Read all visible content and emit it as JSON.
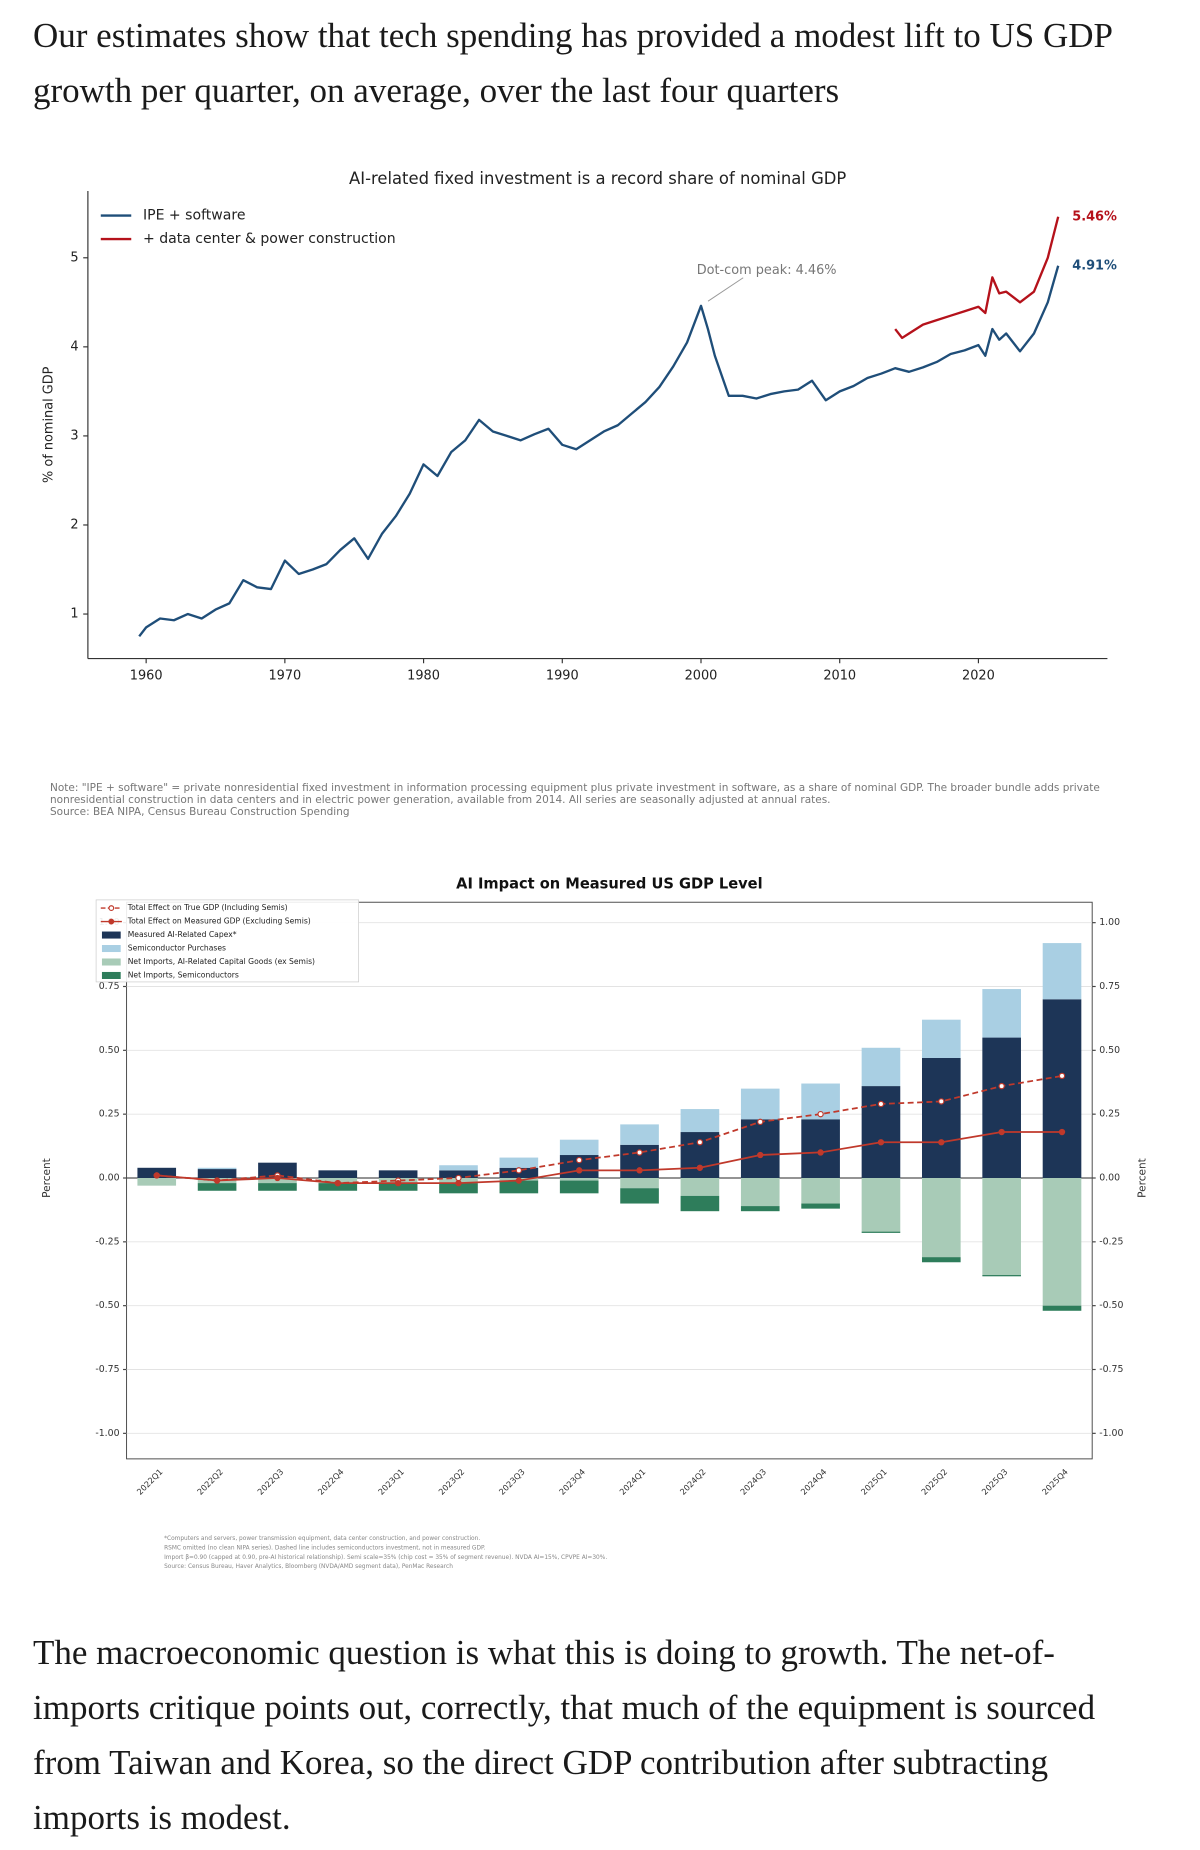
{
  "header": {
    "text": "Our estimates show that tech spending has provided a modest lift to US GDP growth per quarter, on average, over the last four quarters"
  },
  "chart_data": [
    {
      "type": "line",
      "title": "AI-related fixed investment is a record share of nominal GDP",
      "ylabel": "% of nominal GDP",
      "xlim": [
        1955.8,
        2029.3
      ],
      "ylim": [
        0.5,
        5.75
      ],
      "xticks": [
        1960,
        1970,
        1980,
        1990,
        2000,
        2010,
        2020
      ],
      "yticks": [
        1,
        2,
        3,
        4,
        5
      ],
      "grid": false,
      "legend": "upper left",
      "series": [
        {
          "name": "IPE + software",
          "color": "#1f4e79",
          "end_label": "4.91%",
          "x": [
            1959.5,
            1960,
            1961,
            1962,
            1963,
            1964,
            1965,
            1966,
            1967,
            1968,
            1969,
            1970,
            1971,
            1972,
            1973,
            1974,
            1975,
            1976,
            1977,
            1978,
            1979,
            1980,
            1981,
            1982,
            1983,
            1984,
            1985,
            1986,
            1987,
            1988,
            1989,
            1990,
            1991,
            1992,
            1993,
            1994,
            1995,
            1996,
            1997,
            1998,
            1999,
            2000,
            2000.5,
            2001,
            2002,
            2003,
            2004,
            2005,
            2006,
            2007,
            2008,
            2009,
            2010,
            2011,
            2012,
            2013,
            2014,
            2015,
            2016,
            2017,
            2018,
            2019,
            2020,
            2020.5,
            2021,
            2021.5,
            2022,
            2023,
            2024,
            2025,
            2025.75
          ],
          "values": [
            0.75,
            0.85,
            0.95,
            0.93,
            1.0,
            0.95,
            1.05,
            1.12,
            1.38,
            1.3,
            1.28,
            1.6,
            1.45,
            1.5,
            1.56,
            1.72,
            1.85,
            1.62,
            1.9,
            2.1,
            2.35,
            2.68,
            2.55,
            2.82,
            2.95,
            3.18,
            3.05,
            3.0,
            2.95,
            3.02,
            3.08,
            2.9,
            2.85,
            2.95,
            3.05,
            3.12,
            3.25,
            3.38,
            3.55,
            3.78,
            4.05,
            4.46,
            4.2,
            3.9,
            3.45,
            3.45,
            3.42,
            3.47,
            3.5,
            3.52,
            3.62,
            3.4,
            3.5,
            3.56,
            3.65,
            3.7,
            3.76,
            3.72,
            3.77,
            3.83,
            3.92,
            3.96,
            4.02,
            3.9,
            4.2,
            4.08,
            4.15,
            3.95,
            4.15,
            4.5,
            4.91
          ]
        },
        {
          "name": "+ data center & power construction",
          "color": "#b5121b",
          "end_label": "5.46%",
          "x": [
            2014,
            2014.5,
            2015,
            2016,
            2017,
            2018,
            2019,
            2020,
            2020.5,
            2021,
            2021.5,
            2022,
            2023,
            2024,
            2025,
            2025.75
          ],
          "values": [
            4.2,
            4.1,
            4.15,
            4.25,
            4.3,
            4.35,
            4.4,
            4.45,
            4.38,
            4.78,
            4.6,
            4.62,
            4.5,
            4.62,
            5.0,
            5.46
          ]
        }
      ],
      "annotation": {
        "text": "Dot-com peak: 4.46%",
        "x": 2000,
        "y": 4.46
      },
      "note": "Note: \"IPE + software\" = private nonresidential fixed investment in information processing equipment plus private investment in software, as a share of nominal GDP. The broader bundle adds private nonresidential construction in data centers and in electric power generation, available from 2014. All series are seasonally adjusted at annual rates.",
      "source": "Source: BEA NIPA, Census Bureau Construction Spending"
    },
    {
      "type": "bar",
      "stacked": true,
      "title": "AI Impact on Measured US GDP Level",
      "ylabel": "Percent",
      "categories": [
        "2022Q1",
        "2022Q2",
        "2022Q3",
        "2022Q4",
        "2023Q1",
        "2023Q2",
        "2023Q3",
        "2023Q4",
        "2024Q1",
        "2024Q2",
        "2024Q3",
        "2024Q4",
        "2025Q1",
        "2025Q2",
        "2025Q3",
        "2025Q4"
      ],
      "ylim": [
        -1.1,
        1.08
      ],
      "yticks": [
        {
          "value": -1,
          "label": "-1.00"
        },
        {
          "value": -0.75,
          "label": "-0.75"
        },
        {
          "value": -0.5,
          "label": "-0.50"
        },
        {
          "value": -0.25,
          "label": "-0.25"
        },
        {
          "value": 0,
          "label": "0.00"
        },
        {
          "value": 0.25,
          "label": "0.25"
        },
        {
          "value": 0.5,
          "label": "0.50"
        },
        {
          "value": 0.75,
          "label": "0.75"
        },
        {
          "value": 1,
          "label": "1.00"
        }
      ],
      "grid": true,
      "legend": "upper left",
      "series": [
        {
          "name": "Total Effect on True GDP (Including Semis)",
          "type": "line",
          "style": "dashed",
          "marker": "hollow",
          "color": "#c0392b",
          "values": [
            0.01,
            -0.01,
            0.01,
            -0.02,
            -0.01,
            0.0,
            0.03,
            0.07,
            0.1,
            0.14,
            0.22,
            0.25,
            0.29,
            0.3,
            0.36,
            0.4
          ]
        },
        {
          "name": "Total Effect on Measured GDP (Excluding Semis)",
          "type": "line",
          "style": "solid",
          "marker": "filled",
          "color": "#c0392b",
          "values": [
            0.01,
            -0.01,
            0.0,
            -0.02,
            -0.02,
            -0.02,
            -0.01,
            0.03,
            0.03,
            0.04,
            0.09,
            0.1,
            0.14,
            0.14,
            0.18,
            0.18
          ]
        },
        {
          "name": "Measured AI-Related Capex*",
          "type": "bar",
          "color": "#1d3557",
          "values": [
            0.04,
            0.035,
            0.06,
            0.03,
            0.03,
            0.03,
            0.04,
            0.09,
            0.13,
            0.18,
            0.23,
            0.23,
            0.36,
            0.47,
            0.55,
            0.7
          ]
        },
        {
          "name": "Semiconductor Purchases",
          "type": "bar",
          "color": "#a9cfe3",
          "values": [
            0,
            0.005,
            0,
            0,
            0,
            0.02,
            0.04,
            0.06,
            0.08,
            0.09,
            0.12,
            0.14,
            0.15,
            0.15,
            0.19,
            0.22
          ]
        },
        {
          "name": "Net Imports, AI-Related Capital Goods (ex Semis)",
          "type": "bar",
          "color": "#a8cbb7",
          "values": [
            -0.03,
            -0.02,
            -0.02,
            -0.02,
            -0.02,
            -0.02,
            -0.01,
            -0.01,
            -0.04,
            -0.07,
            -0.11,
            -0.1,
            -0.21,
            -0.31,
            -0.38,
            -0.5
          ]
        },
        {
          "name": "Net Imports, Semiconductors",
          "type": "bar",
          "color": "#2e7d5b",
          "values": [
            0,
            -0.03,
            -0.03,
            -0.03,
            -0.03,
            -0.04,
            -0.05,
            -0.05,
            -0.06,
            -0.06,
            -0.02,
            -0.02,
            -0.005,
            -0.02,
            -0.005,
            -0.02
          ]
        }
      ],
      "footnotes": [
        "*Computers and servers, power transmission equipment, data center construction, and power construction.",
        "RSMC omitted (no clean NIPA series). Dashed line includes semiconductors investment, not in measured GDP.",
        "Import β=0.90 (capped at 0.90, pre-AI historical relationship). Semi scale=35% (chip cost = 35% of segment revenue). NVDA AI=15%, CPVPE AI=30%.",
        "Source: Census Bureau, Haver Analytics, Bloomberg (NVDA/AMD segment data), PenMac Research"
      ]
    }
  ],
  "body": {
    "text": "The macroeconomic question is what this is doing to growth. The net-of-imports critique points out, correctly, that much of the equipment is sourced from Taiwan and Korea, so the direct GDP contribution after subtracting imports is modest."
  }
}
